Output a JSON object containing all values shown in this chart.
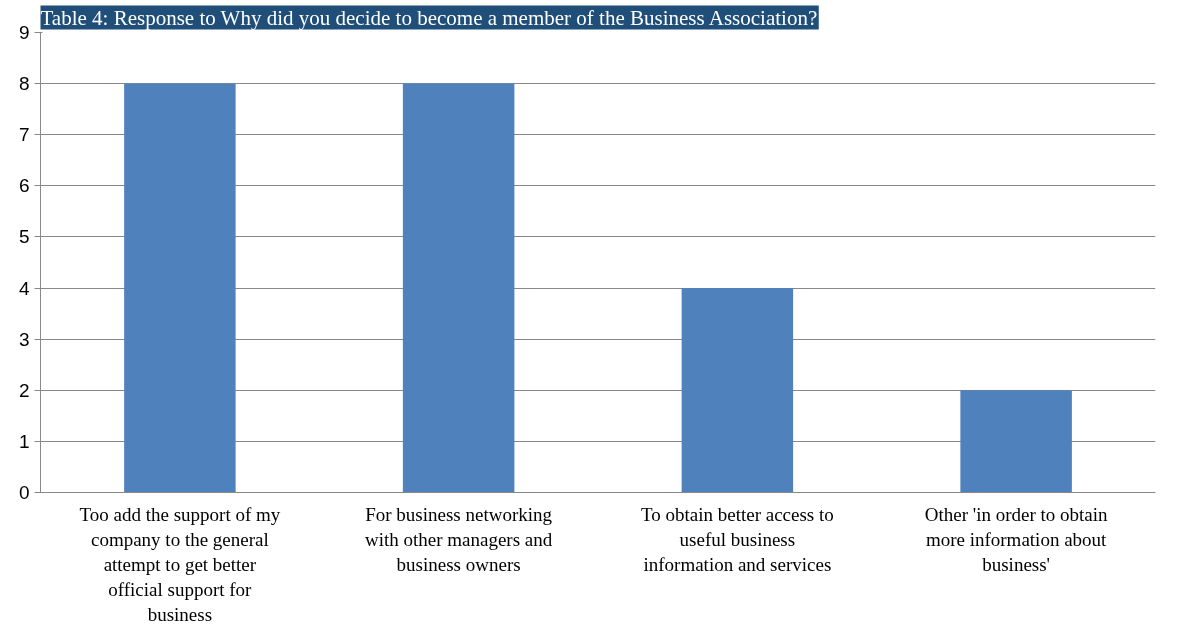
{
  "chart_data": {
    "type": "bar",
    "title": "Table 4: Response to Why did you decide to become a member of the Business Association?",
    "categories": [
      "Too add the support of my company to the general attempt to get better official support for business",
      "For business networking with other managers and business owners",
      "To obtain better access to useful business information and services",
      "Other 'in order to obtain more information about business'"
    ],
    "values": [
      8,
      8,
      4,
      2
    ],
    "color": "#4f81bd",
    "ylim": [
      0,
      9
    ],
    "yticks": [
      0,
      1,
      2,
      3,
      4,
      5,
      6,
      7,
      8,
      9
    ],
    "grid": "y"
  }
}
